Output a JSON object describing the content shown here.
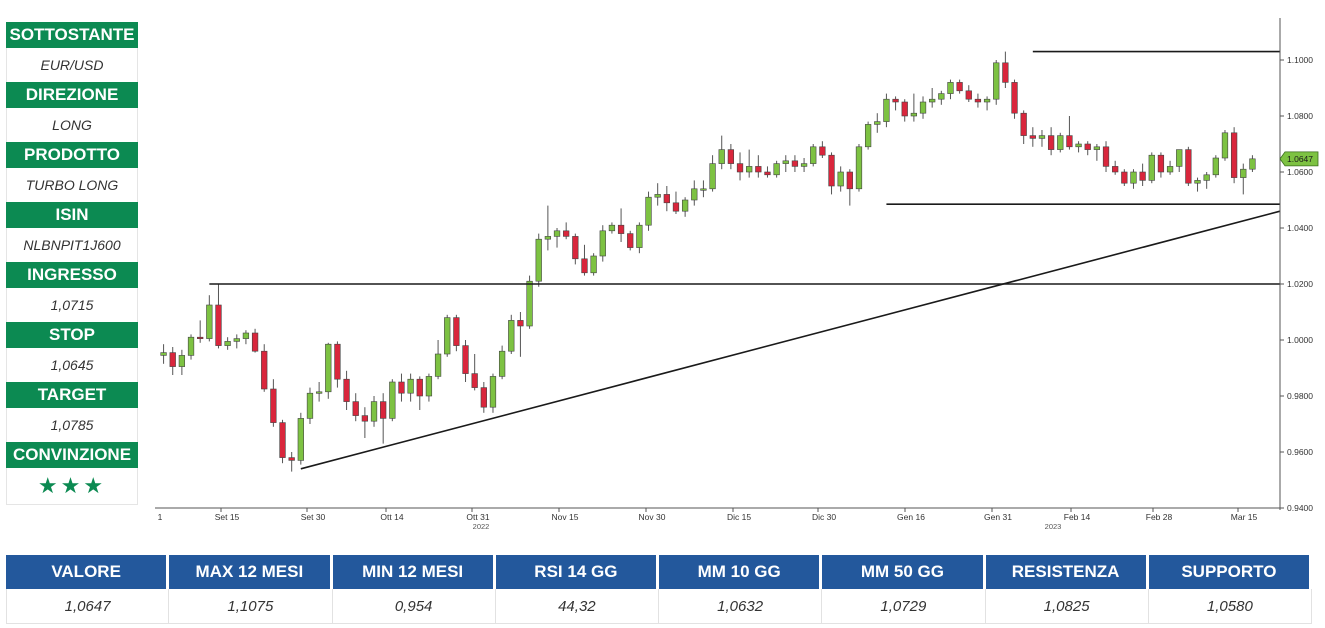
{
  "sidebar": {
    "items": [
      {
        "label": "SOTTOSTANTE",
        "value": "EUR/USD"
      },
      {
        "label": "DIREZIONE",
        "value": "LONG"
      },
      {
        "label": "PRODOTTO",
        "value": "TURBO LONG"
      },
      {
        "label": "ISIN",
        "value": "NLBNPIT1J600"
      },
      {
        "label": "INGRESSO",
        "value": "1,0715"
      },
      {
        "label": "STOP",
        "value": "1,0645"
      },
      {
        "label": "TARGET",
        "value": "1,0785"
      },
      {
        "label": "CONVINZIONE",
        "value": "★★★"
      }
    ]
  },
  "colors": {
    "accent_green": "#0c8a52",
    "table_header_blue": "#23589c",
    "candle_up": "#7dc242",
    "candle_down": "#d9263c"
  },
  "chart_data": {
    "type": "candlestick",
    "title": "",
    "xlabel": "",
    "ylabel": "",
    "ylim": [
      0.94,
      1.115
    ],
    "y_ticks": [
      "0.9400",
      "0.9600",
      "0.9800",
      "1.0000",
      "1.0200",
      "1.0400",
      "1.0600",
      "1.0800",
      "1.1000"
    ],
    "x_ticks": [
      "1",
      "Set 15",
      "Set 30",
      "Ott 14",
      "Ott 31",
      "Nov 15",
      "Nov 30",
      "Dic 15",
      "Dic 30",
      "Gen 16",
      "Gen 31",
      "Feb 14",
      "Feb 28",
      "Mar 15"
    ],
    "year_labels": [
      "2022",
      "2023"
    ],
    "last_price_label": "1.0647",
    "last_price": 1.0647,
    "grid": false,
    "candles": [
      {
        "o": 0.9945,
        "h": 0.9985,
        "l": 0.9915,
        "c": 0.9955
      },
      {
        "o": 0.9955,
        "h": 0.9975,
        "l": 0.9875,
        "c": 0.9905
      },
      {
        "o": 0.9905,
        "h": 0.9965,
        "l": 0.9875,
        "c": 0.9945
      },
      {
        "o": 0.9945,
        "h": 1.002,
        "l": 0.993,
        "c": 1.001
      },
      {
        "o": 1.001,
        "h": 1.007,
        "l": 0.999,
        "c": 1.0005
      },
      {
        "o": 1.0005,
        "h": 1.016,
        "l": 0.9995,
        "c": 1.0125
      },
      {
        "o": 1.0125,
        "h": 1.02,
        "l": 0.997,
        "c": 0.998
      },
      {
        "o": 0.998,
        "h": 1.001,
        "l": 0.9965,
        "c": 0.9995
      },
      {
        "o": 0.9995,
        "h": 1.002,
        "l": 0.997,
        "c": 1.0005
      },
      {
        "o": 1.0005,
        "h": 1.0035,
        "l": 0.9985,
        "c": 1.0025
      },
      {
        "o": 1.0025,
        "h": 1.004,
        "l": 0.9955,
        "c": 0.996
      },
      {
        "o": 0.996,
        "h": 0.9985,
        "l": 0.9815,
        "c": 0.9825
      },
      {
        "o": 0.9825,
        "h": 0.986,
        "l": 0.969,
        "c": 0.9705
      },
      {
        "o": 0.9705,
        "h": 0.9715,
        "l": 0.956,
        "c": 0.958
      },
      {
        "o": 0.958,
        "h": 0.96,
        "l": 0.953,
        "c": 0.957
      },
      {
        "o": 0.957,
        "h": 0.974,
        "l": 0.9555,
        "c": 0.972
      },
      {
        "o": 0.972,
        "h": 0.983,
        "l": 0.97,
        "c": 0.981
      },
      {
        "o": 0.981,
        "h": 0.985,
        "l": 0.978,
        "c": 0.9815
      },
      {
        "o": 0.9815,
        "h": 0.999,
        "l": 0.979,
        "c": 0.9985
      },
      {
        "o": 0.9985,
        "h": 0.9995,
        "l": 0.983,
        "c": 0.986
      },
      {
        "o": 0.986,
        "h": 0.989,
        "l": 0.975,
        "c": 0.978
      },
      {
        "o": 0.978,
        "h": 0.981,
        "l": 0.971,
        "c": 0.973
      },
      {
        "o": 0.973,
        "h": 0.976,
        "l": 0.965,
        "c": 0.971
      },
      {
        "o": 0.971,
        "h": 0.98,
        "l": 0.969,
        "c": 0.978
      },
      {
        "o": 0.978,
        "h": 0.981,
        "l": 0.963,
        "c": 0.972
      },
      {
        "o": 0.972,
        "h": 0.986,
        "l": 0.971,
        "c": 0.985
      },
      {
        "o": 0.985,
        "h": 0.988,
        "l": 0.978,
        "c": 0.981
      },
      {
        "o": 0.981,
        "h": 0.988,
        "l": 0.978,
        "c": 0.986
      },
      {
        "o": 0.986,
        "h": 0.987,
        "l": 0.975,
        "c": 0.98
      },
      {
        "o": 0.98,
        "h": 0.988,
        "l": 0.978,
        "c": 0.987
      },
      {
        "o": 0.987,
        "h": 1.0,
        "l": 0.986,
        "c": 0.995
      },
      {
        "o": 0.995,
        "h": 1.009,
        "l": 0.994,
        "c": 1.008
      },
      {
        "o": 1.008,
        "h": 1.009,
        "l": 0.996,
        "c": 0.998
      },
      {
        "o": 0.998,
        "h": 1.0,
        "l": 0.985,
        "c": 0.988
      },
      {
        "o": 0.988,
        "h": 0.995,
        "l": 0.982,
        "c": 0.983
      },
      {
        "o": 0.983,
        "h": 0.985,
        "l": 0.974,
        "c": 0.976
      },
      {
        "o": 0.976,
        "h": 0.988,
        "l": 0.974,
        "c": 0.987
      },
      {
        "o": 0.987,
        "h": 0.998,
        "l": 0.986,
        "c": 0.996
      },
      {
        "o": 0.996,
        "h": 1.009,
        "l": 0.995,
        "c": 1.007
      },
      {
        "o": 1.007,
        "h": 1.01,
        "l": 0.994,
        "c": 1.005
      },
      {
        "o": 1.005,
        "h": 1.023,
        "l": 1.004,
        "c": 1.021
      },
      {
        "o": 1.021,
        "h": 1.038,
        "l": 1.019,
        "c": 1.036
      },
      {
        "o": 1.036,
        "h": 1.048,
        "l": 1.032,
        "c": 1.037
      },
      {
        "o": 1.037,
        "h": 1.04,
        "l": 1.033,
        "c": 1.039
      },
      {
        "o": 1.039,
        "h": 1.042,
        "l": 1.036,
        "c": 1.037
      },
      {
        "o": 1.037,
        "h": 1.038,
        "l": 1.027,
        "c": 1.029
      },
      {
        "o": 1.029,
        "h": 1.034,
        "l": 1.023,
        "c": 1.024
      },
      {
        "o": 1.024,
        "h": 1.031,
        "l": 1.023,
        "c": 1.03
      },
      {
        "o": 1.03,
        "h": 1.041,
        "l": 1.028,
        "c": 1.039
      },
      {
        "o": 1.039,
        "h": 1.042,
        "l": 1.038,
        "c": 1.041
      },
      {
        "o": 1.041,
        "h": 1.047,
        "l": 1.035,
        "c": 1.038
      },
      {
        "o": 1.038,
        "h": 1.039,
        "l": 1.032,
        "c": 1.033
      },
      {
        "o": 1.033,
        "h": 1.042,
        "l": 1.031,
        "c": 1.041
      },
      {
        "o": 1.041,
        "h": 1.053,
        "l": 1.039,
        "c": 1.051
      },
      {
        "o": 1.051,
        "h": 1.056,
        "l": 1.048,
        "c": 1.052
      },
      {
        "o": 1.052,
        "h": 1.055,
        "l": 1.046,
        "c": 1.049
      },
      {
        "o": 1.049,
        "h": 1.053,
        "l": 1.045,
        "c": 1.046
      },
      {
        "o": 1.046,
        "h": 1.051,
        "l": 1.044,
        "c": 1.05
      },
      {
        "o": 1.05,
        "h": 1.057,
        "l": 1.048,
        "c": 1.054
      },
      {
        "o": 1.054,
        "h": 1.057,
        "l": 1.051,
        "c": 1.054
      },
      {
        "o": 1.054,
        "h": 1.066,
        "l": 1.053,
        "c": 1.063
      },
      {
        "o": 1.063,
        "h": 1.073,
        "l": 1.061,
        "c": 1.068
      },
      {
        "o": 1.068,
        "h": 1.07,
        "l": 1.061,
        "c": 1.063
      },
      {
        "o": 1.063,
        "h": 1.067,
        "l": 1.057,
        "c": 1.06
      },
      {
        "o": 1.06,
        "h": 1.068,
        "l": 1.058,
        "c": 1.062
      },
      {
        "o": 1.062,
        "h": 1.066,
        "l": 1.058,
        "c": 1.06
      },
      {
        "o": 1.06,
        "h": 1.062,
        "l": 1.058,
        "c": 1.059
      },
      {
        "o": 1.059,
        "h": 1.064,
        "l": 1.058,
        "c": 1.063
      },
      {
        "o": 1.063,
        "h": 1.066,
        "l": 1.06,
        "c": 1.064
      },
      {
        "o": 1.064,
        "h": 1.066,
        "l": 1.06,
        "c": 1.062
      },
      {
        "o": 1.062,
        "h": 1.065,
        "l": 1.06,
        "c": 1.063
      },
      {
        "o": 1.063,
        "h": 1.07,
        "l": 1.062,
        "c": 1.069
      },
      {
        "o": 1.069,
        "h": 1.071,
        "l": 1.065,
        "c": 1.066
      },
      {
        "o": 1.066,
        "h": 1.067,
        "l": 1.052,
        "c": 1.055
      },
      {
        "o": 1.055,
        "h": 1.062,
        "l": 1.053,
        "c": 1.06
      },
      {
        "o": 1.06,
        "h": 1.061,
        "l": 1.048,
        "c": 1.054
      },
      {
        "o": 1.054,
        "h": 1.07,
        "l": 1.053,
        "c": 1.069
      },
      {
        "o": 1.069,
        "h": 1.078,
        "l": 1.068,
        "c": 1.077
      },
      {
        "o": 1.077,
        "h": 1.081,
        "l": 1.074,
        "c": 1.078
      },
      {
        "o": 1.078,
        "h": 1.088,
        "l": 1.076,
        "c": 1.086
      },
      {
        "o": 1.086,
        "h": 1.087,
        "l": 1.082,
        "c": 1.085
      },
      {
        "o": 1.085,
        "h": 1.086,
        "l": 1.078,
        "c": 1.08
      },
      {
        "o": 1.08,
        "h": 1.088,
        "l": 1.078,
        "c": 1.081
      },
      {
        "o": 1.081,
        "h": 1.087,
        "l": 1.079,
        "c": 1.085
      },
      {
        "o": 1.085,
        "h": 1.09,
        "l": 1.083,
        "c": 1.086
      },
      {
        "o": 1.086,
        "h": 1.089,
        "l": 1.084,
        "c": 1.088
      },
      {
        "o": 1.088,
        "h": 1.093,
        "l": 1.086,
        "c": 1.092
      },
      {
        "o": 1.092,
        "h": 1.093,
        "l": 1.088,
        "c": 1.089
      },
      {
        "o": 1.089,
        "h": 1.091,
        "l": 1.085,
        "c": 1.086
      },
      {
        "o": 1.086,
        "h": 1.088,
        "l": 1.083,
        "c": 1.085
      },
      {
        "o": 1.085,
        "h": 1.087,
        "l": 1.082,
        "c": 1.086
      },
      {
        "o": 1.086,
        "h": 1.1,
        "l": 1.084,
        "c": 1.099
      },
      {
        "o": 1.099,
        "h": 1.103,
        "l": 1.09,
        "c": 1.092
      },
      {
        "o": 1.092,
        "h": 1.093,
        "l": 1.079,
        "c": 1.081
      },
      {
        "o": 1.081,
        "h": 1.082,
        "l": 1.07,
        "c": 1.073
      },
      {
        "o": 1.073,
        "h": 1.076,
        "l": 1.069,
        "c": 1.072
      },
      {
        "o": 1.072,
        "h": 1.075,
        "l": 1.069,
        "c": 1.073
      },
      {
        "o": 1.073,
        "h": 1.076,
        "l": 1.066,
        "c": 1.068
      },
      {
        "o": 1.068,
        "h": 1.074,
        "l": 1.067,
        "c": 1.073
      },
      {
        "o": 1.073,
        "h": 1.08,
        "l": 1.068,
        "c": 1.069
      },
      {
        "o": 1.069,
        "h": 1.071,
        "l": 1.067,
        "c": 1.07
      },
      {
        "o": 1.07,
        "h": 1.071,
        "l": 1.066,
        "c": 1.068
      },
      {
        "o": 1.068,
        "h": 1.07,
        "l": 1.064,
        "c": 1.069
      },
      {
        "o": 1.069,
        "h": 1.071,
        "l": 1.06,
        "c": 1.062
      },
      {
        "o": 1.062,
        "h": 1.064,
        "l": 1.059,
        "c": 1.06
      },
      {
        "o": 1.06,
        "h": 1.061,
        "l": 1.055,
        "c": 1.056
      },
      {
        "o": 1.056,
        "h": 1.061,
        "l": 1.054,
        "c": 1.06
      },
      {
        "o": 1.06,
        "h": 1.063,
        "l": 1.055,
        "c": 1.057
      },
      {
        "o": 1.057,
        "h": 1.067,
        "l": 1.056,
        "c": 1.066
      },
      {
        "o": 1.066,
        "h": 1.067,
        "l": 1.058,
        "c": 1.06
      },
      {
        "o": 1.06,
        "h": 1.064,
        "l": 1.059,
        "c": 1.062
      },
      {
        "o": 1.062,
        "h": 1.068,
        "l": 1.06,
        "c": 1.068
      },
      {
        "o": 1.068,
        "h": 1.069,
        "l": 1.055,
        "c": 1.056
      },
      {
        "o": 1.056,
        "h": 1.058,
        "l": 1.053,
        "c": 1.057
      },
      {
        "o": 1.057,
        "h": 1.06,
        "l": 1.054,
        "c": 1.059
      },
      {
        "o": 1.059,
        "h": 1.066,
        "l": 1.058,
        "c": 1.065
      },
      {
        "o": 1.065,
        "h": 1.075,
        "l": 1.064,
        "c": 1.074
      },
      {
        "o": 1.074,
        "h": 1.076,
        "l": 1.056,
        "c": 1.058
      },
      {
        "o": 1.058,
        "h": 1.063,
        "l": 1.052,
        "c": 1.061
      },
      {
        "o": 1.061,
        "h": 1.066,
        "l": 1.06,
        "c": 1.0647
      }
    ],
    "horizontal_lines": [
      {
        "value": 1.103,
        "from_index": 95,
        "to_index": 999
      },
      {
        "value": 1.0485,
        "from_index": 79,
        "to_index": 999
      },
      {
        "value": 1.02,
        "from_index": 5,
        "to_index": 999
      }
    ],
    "trendline": {
      "from_index": 15,
      "from_value": 0.954,
      "to_index": 999,
      "to_value": 1.046
    }
  },
  "table": {
    "headers": [
      "VALORE",
      "MAX 12 MESI",
      "MIN 12 MESI",
      "RSI 14 GG",
      "MM 10 GG",
      "MM 50 GG",
      "RESISTENZA",
      "SUPPORTO"
    ],
    "values": [
      "1,0647",
      "1,1075",
      "0,954",
      "44,32",
      "1,0632",
      "1,0729",
      "1,0825",
      "1,0580"
    ]
  }
}
